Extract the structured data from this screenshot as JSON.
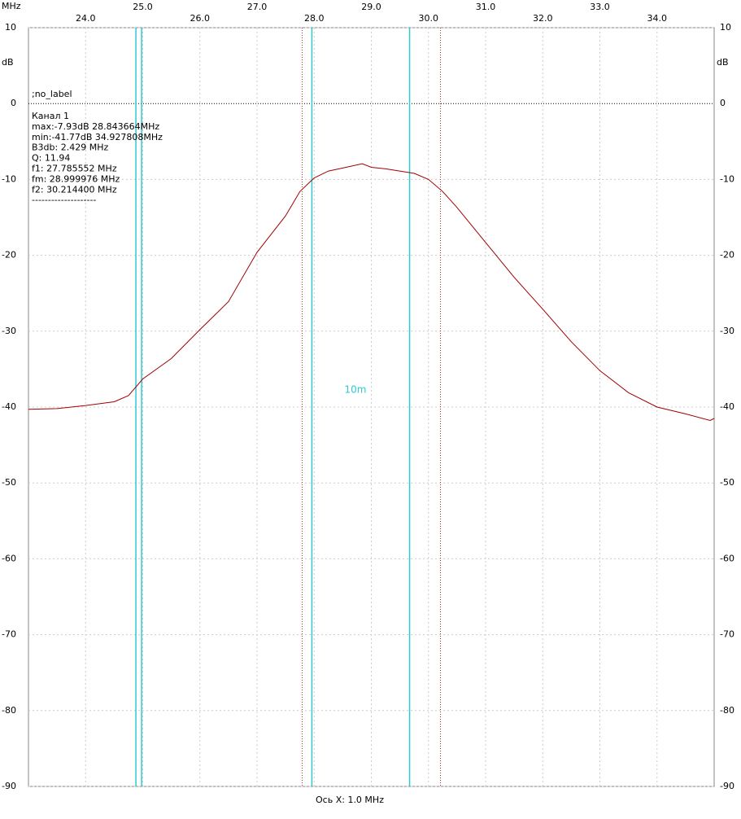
{
  "chart_data": {
    "type": "line",
    "x_unit": "MHz",
    "y_unit": "dB",
    "x_axis_label": "Ось X: 1.0 MHz",
    "info": [
      ";no_label",
      "Канал 1",
      "max:-7.93dB 28.843664MHz",
      "min:-41.77dB 34.927808MHz",
      "B3db: 2.429 MHz",
      "Q: 11.94",
      "f1: 27.785552 MHz",
      "fm: 28.999976 MHz",
      "f2: 30.214400 MHz",
      "--------------------"
    ],
    "band_label": "10m",
    "x": [
      23.0,
      23.5,
      24.0,
      24.5,
      24.75,
      25.0,
      25.5,
      26.0,
      26.5,
      27.0,
      27.5,
      27.75,
      28.0,
      28.25,
      28.5,
      28.84,
      29.0,
      29.25,
      29.5,
      29.75,
      30.0,
      30.25,
      30.5,
      31.0,
      31.5,
      32.0,
      32.5,
      33.0,
      33.5,
      34.0,
      34.5,
      34.93,
      35.0
    ],
    "series": [
      {
        "name": "Канал 1",
        "color": "#a00000",
        "values": [
          -40.3,
          -40.2,
          -39.8,
          -39.3,
          -38.5,
          -36.3,
          -33.6,
          -29.8,
          -26.1,
          -19.6,
          -14.8,
          -11.6,
          -9.8,
          -8.9,
          -8.5,
          -7.93,
          -8.4,
          -8.6,
          -8.9,
          -9.2,
          -10.0,
          -11.6,
          -13.7,
          -18.3,
          -22.9,
          -27.1,
          -31.4,
          -35.2,
          -38.1,
          -40.0,
          -40.9,
          -41.77,
          -41.5
        ]
      }
    ],
    "band_lines": {
      "color": "#30c8d0",
      "x": [
        24.88,
        24.98,
        27.96,
        29.67
      ]
    },
    "cursor_lines": {
      "color": "#b03030",
      "x": [
        27.79,
        30.21
      ]
    },
    "xlim": [
      23.0,
      35.0
    ],
    "xticks": [
      {
        "value": 24,
        "label": "24.0"
      },
      {
        "value": 25,
        "label": "25.0"
      },
      {
        "value": 26,
        "label": "26.0"
      },
      {
        "value": 27,
        "label": "27.0"
      },
      {
        "value": 28,
        "label": "28.0"
      },
      {
        "value": 29,
        "label": "29.0"
      },
      {
        "value": 30,
        "label": "30.0"
      },
      {
        "value": 31,
        "label": "31.0"
      },
      {
        "value": 32,
        "label": "32.0"
      },
      {
        "value": 33,
        "label": "33.0"
      },
      {
        "value": 34,
        "label": "34.0"
      }
    ],
    "ylim": [
      -90,
      10
    ],
    "yticks": [
      10,
      0,
      -10,
      -20,
      -30,
      -40,
      -50,
      -60,
      -70,
      -80,
      -90
    ],
    "grid": true
  }
}
